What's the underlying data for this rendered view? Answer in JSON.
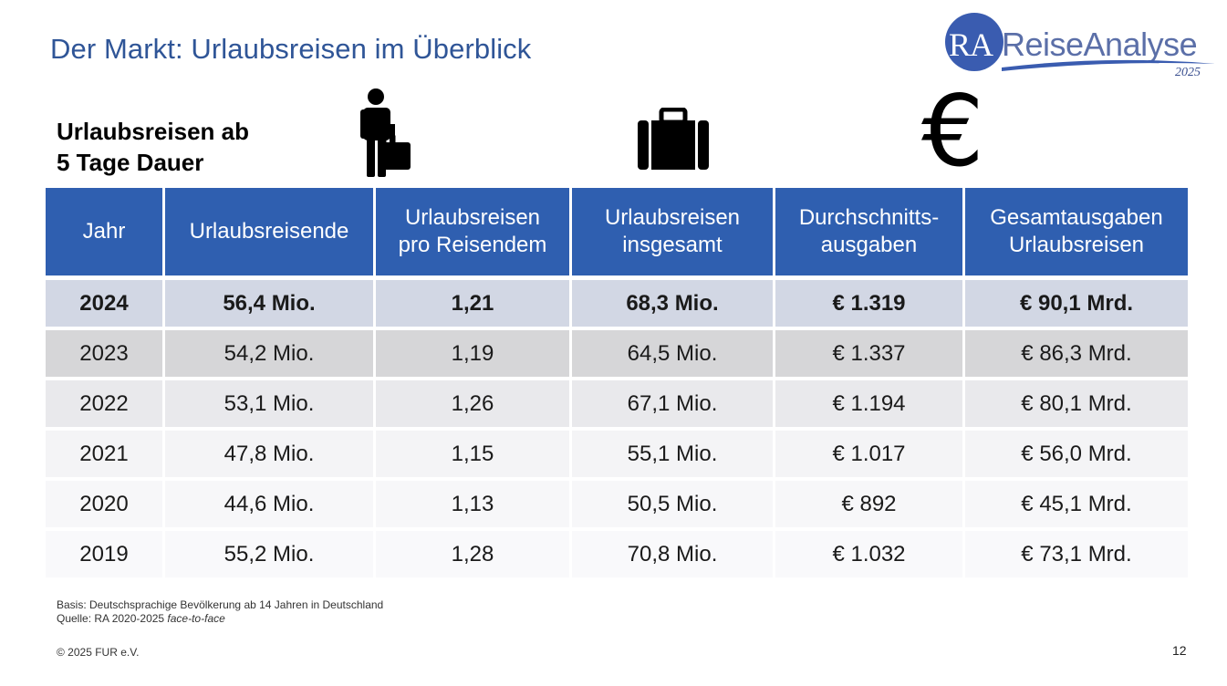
{
  "title": "Der Markt: Urlaubsreisen im Überblick",
  "logo": {
    "abbr": "RA",
    "name": "ReiseAnalyse",
    "year": "2025",
    "circle_color": "#3a5cb0"
  },
  "subtitle": {
    "line1": "Urlaubsreisen ab",
    "line2": "5 Tage Dauer"
  },
  "icons": [
    "traveler-with-suitcase-icon",
    "suitcase-icon",
    "euro-icon"
  ],
  "euro_symbol": "€",
  "table": {
    "header_color": "#2f5fb0",
    "headers": [
      [
        "Jahr"
      ],
      [
        "Urlaubsreisende"
      ],
      [
        "Urlaubsreisen",
        "pro Reisendem"
      ],
      [
        "Urlaubsreisen",
        "insgesamt"
      ],
      [
        "Durchschnitts-",
        "ausgaben"
      ],
      [
        "Gesamtausgaben",
        "Urlaubsreisen"
      ]
    ],
    "rows": [
      [
        "2024",
        "56,4 Mio.",
        "1,21",
        "68,3 Mio.",
        "€ 1.319",
        "€ 90,1 Mrd."
      ],
      [
        "2023",
        "54,2 Mio.",
        "1,19",
        "64,5 Mio.",
        "€ 1.337",
        "€ 86,3 Mrd."
      ],
      [
        "2022",
        "53,1 Mio.",
        "1,26",
        "67,1 Mio.",
        "€ 1.194",
        "€ 80,1 Mrd."
      ],
      [
        "2021",
        "47,8 Mio.",
        "1,15",
        "55,1 Mio.",
        "€ 1.017",
        "€ 56,0 Mrd."
      ],
      [
        "2020",
        "44,6 Mio.",
        "1,13",
        "50,5 Mio.",
        "€ 892",
        "€ 45,1 Mrd."
      ],
      [
        "2019",
        "55,2 Mio.",
        "1,28",
        "70,8 Mio.",
        "€ 1.032",
        "€ 73,1 Mrd."
      ]
    ]
  },
  "footnote": {
    "basis": "Basis: Deutschsprachige Bevölkerung ab 14 Jahren in Deutschland",
    "source_prefix": "Quelle: RA 2020-2025 ",
    "source_italic": "face-to-face"
  },
  "copyright": "© 2025 FUR e.V.",
  "page_number": "12"
}
